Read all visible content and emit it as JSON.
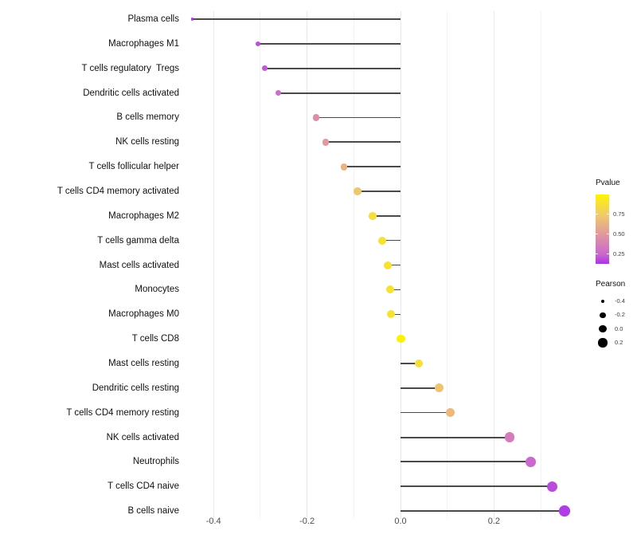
{
  "chart_data": {
    "type": "lollipop",
    "title": "",
    "xlabel": "",
    "ylabel": "",
    "grid": true,
    "x_major_ticks": [
      -0.4,
      -0.2,
      0.0,
      0.2
    ],
    "x_minor_ticks": [
      -0.3,
      -0.1,
      0.1,
      0.3
    ],
    "x_tick_labels": [
      "-0.4",
      "-0.2",
      "0.0",
      "0.2"
    ],
    "x_range": [
      -0.46,
      0.383
    ],
    "rows": [
      {
        "label": "Plasma cells",
        "pearson": -0.446,
        "pvalue": 0.12
      },
      {
        "label": "Macrophages M1",
        "pearson": -0.305,
        "pvalue": 0.18
      },
      {
        "label": "T cells regulatory  Tregs",
        "pearson": -0.29,
        "pvalue": 0.21
      },
      {
        "label": "Dendritic cells activated",
        "pearson": -0.261,
        "pvalue": 0.27
      },
      {
        "label": "B cells memory",
        "pearson": -0.181,
        "pvalue": 0.45
      },
      {
        "label": "NK cells resting",
        "pearson": -0.16,
        "pvalue": 0.5
      },
      {
        "label": "T cells follicular helper",
        "pearson": -0.121,
        "pvalue": 0.63
      },
      {
        "label": "T cells CD4 memory activated",
        "pearson": -0.092,
        "pvalue": 0.72
      },
      {
        "label": "Macrophages M2",
        "pearson": -0.06,
        "pvalue": 0.86
      },
      {
        "label": "T cells gamma delta",
        "pearson": -0.039,
        "pvalue": 0.89
      },
      {
        "label": "Mast cells activated",
        "pearson": -0.027,
        "pvalue": 0.89
      },
      {
        "label": "Monocytes",
        "pearson": -0.022,
        "pvalue": 0.89
      },
      {
        "label": "Macrophages M0",
        "pearson": -0.02,
        "pvalue": 0.89
      },
      {
        "label": "T cells CD8",
        "pearson": 0.001,
        "pvalue": 0.99
      },
      {
        "label": "Mast cells resting",
        "pearson": 0.039,
        "pvalue": 0.87
      },
      {
        "label": "Dendritic cells resting",
        "pearson": 0.083,
        "pvalue": 0.71
      },
      {
        "label": "T cells CD4 memory resting",
        "pearson": 0.107,
        "pvalue": 0.66
      },
      {
        "label": "NK cells activated",
        "pearson": 0.233,
        "pvalue": 0.35
      },
      {
        "label": "Neutrophils",
        "pearson": 0.279,
        "pvalue": 0.25
      },
      {
        "label": "T cells CD4 naive",
        "pearson": 0.325,
        "pvalue": 0.17
      },
      {
        "label": "B cells naive",
        "pearson": 0.351,
        "pvalue": 0.13
      }
    ],
    "color_legend": {
      "title": "Pvalue",
      "tick_labels": [
        "0.75",
        "0.50",
        "0.25"
      ],
      "tick_values": [
        0.75,
        0.5,
        0.25
      ],
      "range": [
        0.128,
        1.0
      ],
      "gradient_stops": [
        {
          "p": 0.1,
          "color": "#ab32ea"
        },
        {
          "p": 0.25,
          "color": "#cb68cd"
        },
        {
          "p": 0.5,
          "color": "#e1989e"
        },
        {
          "p": 0.75,
          "color": "#f0cc69"
        },
        {
          "p": 1.0,
          "color": "#fdf403"
        }
      ]
    },
    "size_legend": {
      "title": "Pearson",
      "tick_labels": [
        "-0.4",
        "-0.2",
        "0.0",
        "0.2"
      ],
      "tick_values": [
        -0.4,
        -0.2,
        0.0,
        0.2
      ],
      "dot_color": "#000000"
    },
    "stem_color": "#4a4a4a",
    "background": "#ffffff"
  }
}
